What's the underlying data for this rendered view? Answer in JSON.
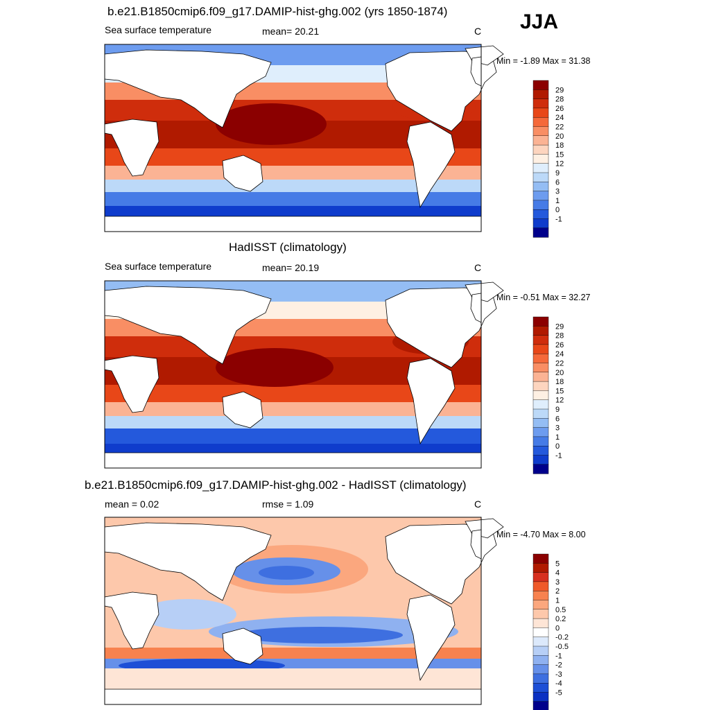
{
  "season": "JJA",
  "panels": [
    {
      "title": "b.e21.B1850cmip6.f09_g17.DAMIP-hist-ghg.002 (yrs 1850-1874)",
      "left_label": "Sea surface temperature",
      "center_label": "mean=  20.21",
      "units": "C",
      "minmax": "Min =  -1.89 Max =  31.38",
      "colorbar": {
        "labels": [
          "29",
          "28",
          "26",
          "24",
          "22",
          "20",
          "18",
          "15",
          "12",
          "9",
          "6",
          "3",
          "1",
          "0",
          "-1"
        ],
        "colors": [
          "#8b0000",
          "#b01a00",
          "#cf2d0c",
          "#e84718",
          "#f5693a",
          "#f98e64",
          "#fbb394",
          "#fdd5bf",
          "#fef0e3",
          "#dfeefc",
          "#bcd9f8",
          "#94bdf4",
          "#6d9cef",
          "#467be6",
          "#2459dc",
          "#0f3ccc",
          "#00008b"
        ]
      }
    },
    {
      "title": "HadISST (climatology)",
      "left_label": "Sea surface temperature",
      "center_label": "mean=  20.19",
      "units": "C",
      "minmax": "Min =  -0.51 Max =  32.27",
      "colorbar": {
        "labels": [
          "29",
          "28",
          "26",
          "24",
          "22",
          "20",
          "18",
          "15",
          "12",
          "9",
          "6",
          "3",
          "1",
          "0",
          "-1"
        ],
        "colors": [
          "#8b0000",
          "#b01a00",
          "#cf2d0c",
          "#e84718",
          "#f5693a",
          "#f98e64",
          "#fbb394",
          "#fdd5bf",
          "#fef0e3",
          "#dfeefc",
          "#bcd9f8",
          "#94bdf4",
          "#6d9cef",
          "#467be6",
          "#2459dc",
          "#0f3ccc",
          "#00008b"
        ]
      }
    },
    {
      "title": "b.e21.B1850cmip6.f09_g17.DAMIP-hist-ghg.002 - HadISST (climatology)",
      "left_label": "mean =   0.02",
      "center_label": "rmse =   1.09",
      "units": "C",
      "minmax": "Min =  -4.70 Max =   8.00",
      "colorbar": {
        "labels": [
          "5",
          "4",
          "3",
          "2",
          "1",
          "0.5",
          "0.2",
          "0",
          "-0.2",
          "-0.5",
          "-1",
          "-2",
          "-3",
          "-4",
          "-5"
        ],
        "colors": [
          "#8b0000",
          "#b01a00",
          "#d7301f",
          "#ef5a2a",
          "#f7824f",
          "#fba77e",
          "#fdc8ab",
          "#fee5d6",
          "#ffffff",
          "#dce9fb",
          "#b7cff6",
          "#8fb1f0",
          "#6690e9",
          "#3e6fe0",
          "#1d4fd6",
          "#0b31c2",
          "#00008b"
        ]
      }
    }
  ]
}
